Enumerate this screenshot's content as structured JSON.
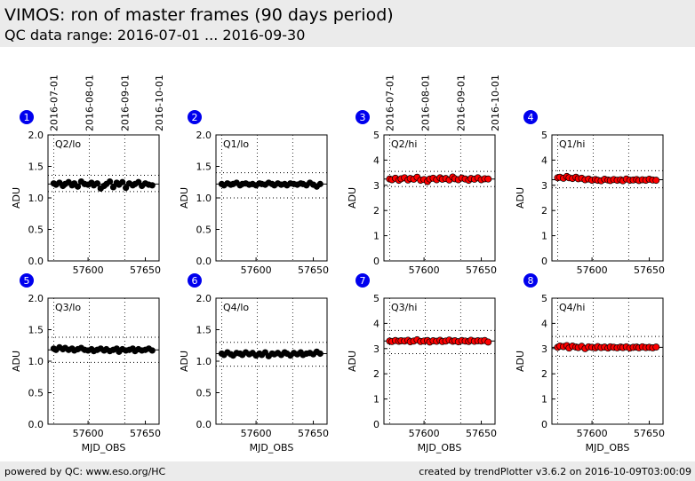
{
  "header": {
    "title": "VIMOS: ron of master frames (90 days period)",
    "range": "QC data range: 2016-07-01 ... 2016-09-30"
  },
  "footer": {
    "left": "powered by QC: www.eso.org/HC",
    "right": "created by trendPlotter v3.6.2 on 2016-10-09T03:00:09"
  },
  "colors": {
    "black_series": "#000000",
    "red_series": "#ff0000",
    "badge": "#0000ee",
    "header_bg": "#ebebeb"
  },
  "date_ticks": {
    "labels": [
      "2016-07-01",
      "2016-08-01",
      "2016-09-01",
      "2016-10-01"
    ],
    "mjd": [
      57570,
      57601,
      57632,
      57662
    ]
  },
  "chart_data": [
    {
      "type": "scatter",
      "panel": "1",
      "label": "Q2/lo",
      "ylabel": "ADU",
      "xlabel": "",
      "ylim": [
        0,
        2.0
      ],
      "yticks": [
        0,
        0.5,
        1.0,
        1.5,
        2.0
      ],
      "ytick_labels": [
        "0.0",
        "0.5",
        "1.0",
        "1.5",
        "2.0"
      ],
      "xlim": [
        57565,
        57662
      ],
      "xticks": [
        57600,
        57650
      ],
      "xtick_labels": [
        "57600",
        "57650"
      ],
      "hlines": [
        1.22,
        1.36,
        1.1
      ],
      "color": "black",
      "series": [
        {
          "name": "Q2/lo",
          "x": [
            57570,
            57572,
            57575,
            57578,
            57580,
            57583,
            57586,
            57588,
            57591,
            57594,
            57597,
            57600,
            57603,
            57605,
            57608,
            57611,
            57614,
            57616,
            57619,
            57622,
            57625,
            57627,
            57630,
            57633,
            57636,
            57639,
            57641,
            57644,
            57647,
            57650,
            57653,
            57656
          ],
          "y": [
            1.23,
            1.21,
            1.24,
            1.19,
            1.22,
            1.25,
            1.2,
            1.23,
            1.18,
            1.26,
            1.22,
            1.21,
            1.24,
            1.2,
            1.23,
            1.15,
            1.19,
            1.22,
            1.26,
            1.17,
            1.24,
            1.21,
            1.25,
            1.16,
            1.23,
            1.2,
            1.22,
            1.25,
            1.19,
            1.23,
            1.21,
            1.2
          ]
        }
      ]
    },
    {
      "type": "scatter",
      "panel": "2",
      "label": "Q1/lo",
      "ylabel": "ADU",
      "xlabel": "",
      "ylim": [
        0,
        2.0
      ],
      "yticks": [
        0,
        0.5,
        1.0,
        1.5,
        2.0
      ],
      "ytick_labels": [
        "0.0",
        "0.5",
        "1.0",
        "1.5",
        "2.0"
      ],
      "xlim": [
        57565,
        57662
      ],
      "xticks": [
        57600,
        57650
      ],
      "xtick_labels": [
        "57600",
        "57650"
      ],
      "hlines": [
        1.22,
        1.4,
        1.0
      ],
      "color": "black",
      "series": [
        {
          "name": "Q1/lo",
          "x": [
            57570,
            57572,
            57575,
            57578,
            57580,
            57583,
            57586,
            57588,
            57591,
            57594,
            57597,
            57600,
            57603,
            57605,
            57608,
            57611,
            57614,
            57616,
            57619,
            57622,
            57625,
            57627,
            57630,
            57633,
            57636,
            57639,
            57641,
            57644,
            57647,
            57650,
            57653,
            57656
          ],
          "y": [
            1.22,
            1.2,
            1.23,
            1.21,
            1.22,
            1.24,
            1.2,
            1.22,
            1.23,
            1.21,
            1.22,
            1.2,
            1.23,
            1.22,
            1.21,
            1.24,
            1.22,
            1.2,
            1.23,
            1.21,
            1.22,
            1.2,
            1.23,
            1.22,
            1.21,
            1.23,
            1.22,
            1.2,
            1.24,
            1.21,
            1.18,
            1.22
          ]
        }
      ]
    },
    {
      "type": "scatter",
      "panel": "3",
      "label": "Q2/hi",
      "ylabel": "ADU",
      "xlabel": "",
      "ylim": [
        0,
        5
      ],
      "yticks": [
        0,
        1,
        2,
        3,
        4,
        5
      ],
      "ytick_labels": [
        "0",
        "1",
        "2",
        "3",
        "4",
        "5"
      ],
      "xlim": [
        57565,
        57662
      ],
      "xticks": [
        57600,
        57650
      ],
      "xtick_labels": [
        "57600",
        "57650"
      ],
      "hlines": [
        3.25,
        3.55,
        2.95
      ],
      "color": "red",
      "series": [
        {
          "name": "Q2/hi",
          "x": [
            57570,
            57572,
            57575,
            57578,
            57580,
            57583,
            57586,
            57588,
            57591,
            57594,
            57597,
            57600,
            57603,
            57605,
            57608,
            57611,
            57614,
            57616,
            57619,
            57622,
            57625,
            57627,
            57630,
            57633,
            57636,
            57639,
            57641,
            57644,
            57647,
            57650,
            57653,
            57656
          ],
          "y": [
            3.25,
            3.22,
            3.28,
            3.2,
            3.26,
            3.3,
            3.21,
            3.27,
            3.24,
            3.32,
            3.2,
            3.23,
            3.15,
            3.25,
            3.28,
            3.22,
            3.3,
            3.24,
            3.27,
            3.21,
            3.33,
            3.26,
            3.22,
            3.29,
            3.25,
            3.2,
            3.27,
            3.24,
            3.3,
            3.22,
            3.26,
            3.25
          ]
        }
      ]
    },
    {
      "type": "scatter",
      "panel": "4",
      "label": "Q1/hi",
      "ylabel": "ADU",
      "xlabel": "",
      "ylim": [
        0,
        5
      ],
      "yticks": [
        0,
        1,
        2,
        3,
        4,
        5
      ],
      "ytick_labels": [
        "0",
        "1",
        "2",
        "3",
        "4",
        "5"
      ],
      "xlim": [
        57565,
        57662
      ],
      "xticks": [
        57600,
        57650
      ],
      "xtick_labels": [
        "57600",
        "57650"
      ],
      "hlines": [
        3.22,
        3.58,
        2.9
      ],
      "color": "red",
      "series": [
        {
          "name": "Q1/hi",
          "x": [
            57570,
            57572,
            57575,
            57578,
            57580,
            57583,
            57586,
            57588,
            57591,
            57594,
            57597,
            57600,
            57603,
            57605,
            57608,
            57611,
            57614,
            57616,
            57619,
            57622,
            57625,
            57627,
            57630,
            57633,
            57636,
            57639,
            57641,
            57644,
            57647,
            57650,
            57653,
            57656
          ],
          "y": [
            3.3,
            3.32,
            3.28,
            3.35,
            3.3,
            3.27,
            3.32,
            3.26,
            3.28,
            3.22,
            3.25,
            3.2,
            3.23,
            3.2,
            3.18,
            3.24,
            3.21,
            3.19,
            3.23,
            3.2,
            3.22,
            3.18,
            3.25,
            3.2,
            3.21,
            3.23,
            3.19,
            3.22,
            3.2,
            3.24,
            3.21,
            3.2
          ]
        }
      ]
    },
    {
      "type": "scatter",
      "panel": "5",
      "label": "Q3/lo",
      "ylabel": "ADU",
      "xlabel": "MJD_OBS",
      "ylim": [
        0,
        2.0
      ],
      "yticks": [
        0,
        0.5,
        1.0,
        1.5,
        2.0
      ],
      "ytick_labels": [
        "0.0",
        "0.5",
        "1.0",
        "1.5",
        "2.0"
      ],
      "xlim": [
        57565,
        57662
      ],
      "xticks": [
        57600,
        57650
      ],
      "xtick_labels": [
        "57600",
        "57650"
      ],
      "hlines": [
        1.18,
        1.38,
        0.98
      ],
      "color": "black",
      "series": [
        {
          "name": "Q3/lo",
          "x": [
            57570,
            57572,
            57575,
            57578,
            57580,
            57583,
            57586,
            57588,
            57591,
            57594,
            57597,
            57600,
            57603,
            57605,
            57608,
            57611,
            57614,
            57616,
            57619,
            57622,
            57625,
            57627,
            57630,
            57633,
            57636,
            57639,
            57641,
            57644,
            57647,
            57650,
            57653,
            57656
          ],
          "y": [
            1.2,
            1.18,
            1.22,
            1.19,
            1.21,
            1.18,
            1.2,
            1.17,
            1.19,
            1.21,
            1.18,
            1.17,
            1.19,
            1.16,
            1.18,
            1.2,
            1.17,
            1.19,
            1.16,
            1.18,
            1.2,
            1.15,
            1.19,
            1.17,
            1.18,
            1.2,
            1.16,
            1.19,
            1.17,
            1.18,
            1.2,
            1.17
          ]
        }
      ]
    },
    {
      "type": "scatter",
      "panel": "6",
      "label": "Q4/lo",
      "ylabel": "ADU",
      "xlabel": "MJD_OBS",
      "ylim": [
        0,
        2.0
      ],
      "yticks": [
        0,
        0.5,
        1.0,
        1.5,
        2.0
      ],
      "ytick_labels": [
        "0.0",
        "0.5",
        "1.0",
        "1.5",
        "2.0"
      ],
      "xlim": [
        57565,
        57662
      ],
      "xticks": [
        57600,
        57650
      ],
      "xtick_labels": [
        "57600",
        "57650"
      ],
      "hlines": [
        1.12,
        1.3,
        0.92
      ],
      "color": "black",
      "series": [
        {
          "name": "Q4/lo",
          "x": [
            57570,
            57572,
            57575,
            57578,
            57580,
            57583,
            57586,
            57588,
            57591,
            57594,
            57597,
            57600,
            57603,
            57605,
            57608,
            57611,
            57614,
            57616,
            57619,
            57622,
            57625,
            57627,
            57630,
            57633,
            57636,
            57639,
            57641,
            57644,
            57647,
            57650,
            57653,
            57656
          ],
          "y": [
            1.12,
            1.1,
            1.14,
            1.11,
            1.09,
            1.13,
            1.12,
            1.1,
            1.14,
            1.11,
            1.13,
            1.09,
            1.12,
            1.1,
            1.14,
            1.08,
            1.12,
            1.11,
            1.13,
            1.1,
            1.14,
            1.12,
            1.09,
            1.13,
            1.11,
            1.14,
            1.1,
            1.12,
            1.13,
            1.11,
            1.15,
            1.12
          ]
        }
      ]
    },
    {
      "type": "scatter",
      "panel": "7",
      "label": "Q3/hi",
      "ylabel": "ADU",
      "xlabel": "MJD_OBS",
      "ylim": [
        0,
        5
      ],
      "yticks": [
        0,
        1,
        2,
        3,
        4,
        5
      ],
      "ytick_labels": [
        "0",
        "1",
        "2",
        "3",
        "4",
        "5"
      ],
      "xlim": [
        57565,
        57662
      ],
      "xticks": [
        57600,
        57650
      ],
      "xtick_labels": [
        "57600",
        "57650"
      ],
      "hlines": [
        3.3,
        3.72,
        2.8
      ],
      "color": "red",
      "series": [
        {
          "name": "Q3/hi",
          "x": [
            57570,
            57572,
            57575,
            57578,
            57580,
            57583,
            57586,
            57588,
            57591,
            57594,
            57597,
            57600,
            57603,
            57605,
            57608,
            57611,
            57614,
            57616,
            57619,
            57622,
            57625,
            57627,
            57630,
            57633,
            57636,
            57639,
            57641,
            57644,
            57647,
            57650,
            57653,
            57656
          ],
          "y": [
            3.3,
            3.28,
            3.32,
            3.29,
            3.31,
            3.3,
            3.33,
            3.27,
            3.3,
            3.35,
            3.28,
            3.3,
            3.32,
            3.26,
            3.31,
            3.29,
            3.33,
            3.28,
            3.3,
            3.34,
            3.29,
            3.31,
            3.27,
            3.32,
            3.3,
            3.28,
            3.33,
            3.29,
            3.31,
            3.3,
            3.32,
            3.26
          ]
        }
      ]
    },
    {
      "type": "scatter",
      "panel": "8",
      "label": "Q4/hi",
      "ylabel": "ADU",
      "xlabel": "MJD_OBS",
      "ylim": [
        0,
        5
      ],
      "yticks": [
        0,
        1,
        2,
        3,
        4,
        5
      ],
      "ytick_labels": [
        "0",
        "1",
        "2",
        "3",
        "4",
        "5"
      ],
      "xlim": [
        57565,
        57662
      ],
      "xticks": [
        57600,
        57650
      ],
      "xtick_labels": [
        "57600",
        "57650"
      ],
      "hlines": [
        3.05,
        3.48,
        2.7
      ],
      "color": "red",
      "series": [
        {
          "name": "Q4/hi",
          "x": [
            57570,
            57572,
            57575,
            57578,
            57580,
            57583,
            57586,
            57588,
            57591,
            57594,
            57597,
            57600,
            57603,
            57605,
            57608,
            57611,
            57614,
            57616,
            57619,
            57622,
            57625,
            57627,
            57630,
            57633,
            57636,
            57639,
            57641,
            57644,
            57647,
            57650,
            57653,
            57656
          ],
          "y": [
            3.05,
            3.1,
            3.08,
            3.12,
            3.02,
            3.1,
            3.06,
            3.04,
            3.09,
            3.0,
            3.07,
            3.05,
            3.03,
            3.08,
            3.04,
            3.06,
            3.02,
            3.07,
            3.05,
            3.03,
            3.06,
            3.04,
            3.07,
            3.02,
            3.05,
            3.06,
            3.03,
            3.07,
            3.04,
            3.05,
            3.03,
            3.06
          ]
        }
      ]
    }
  ]
}
